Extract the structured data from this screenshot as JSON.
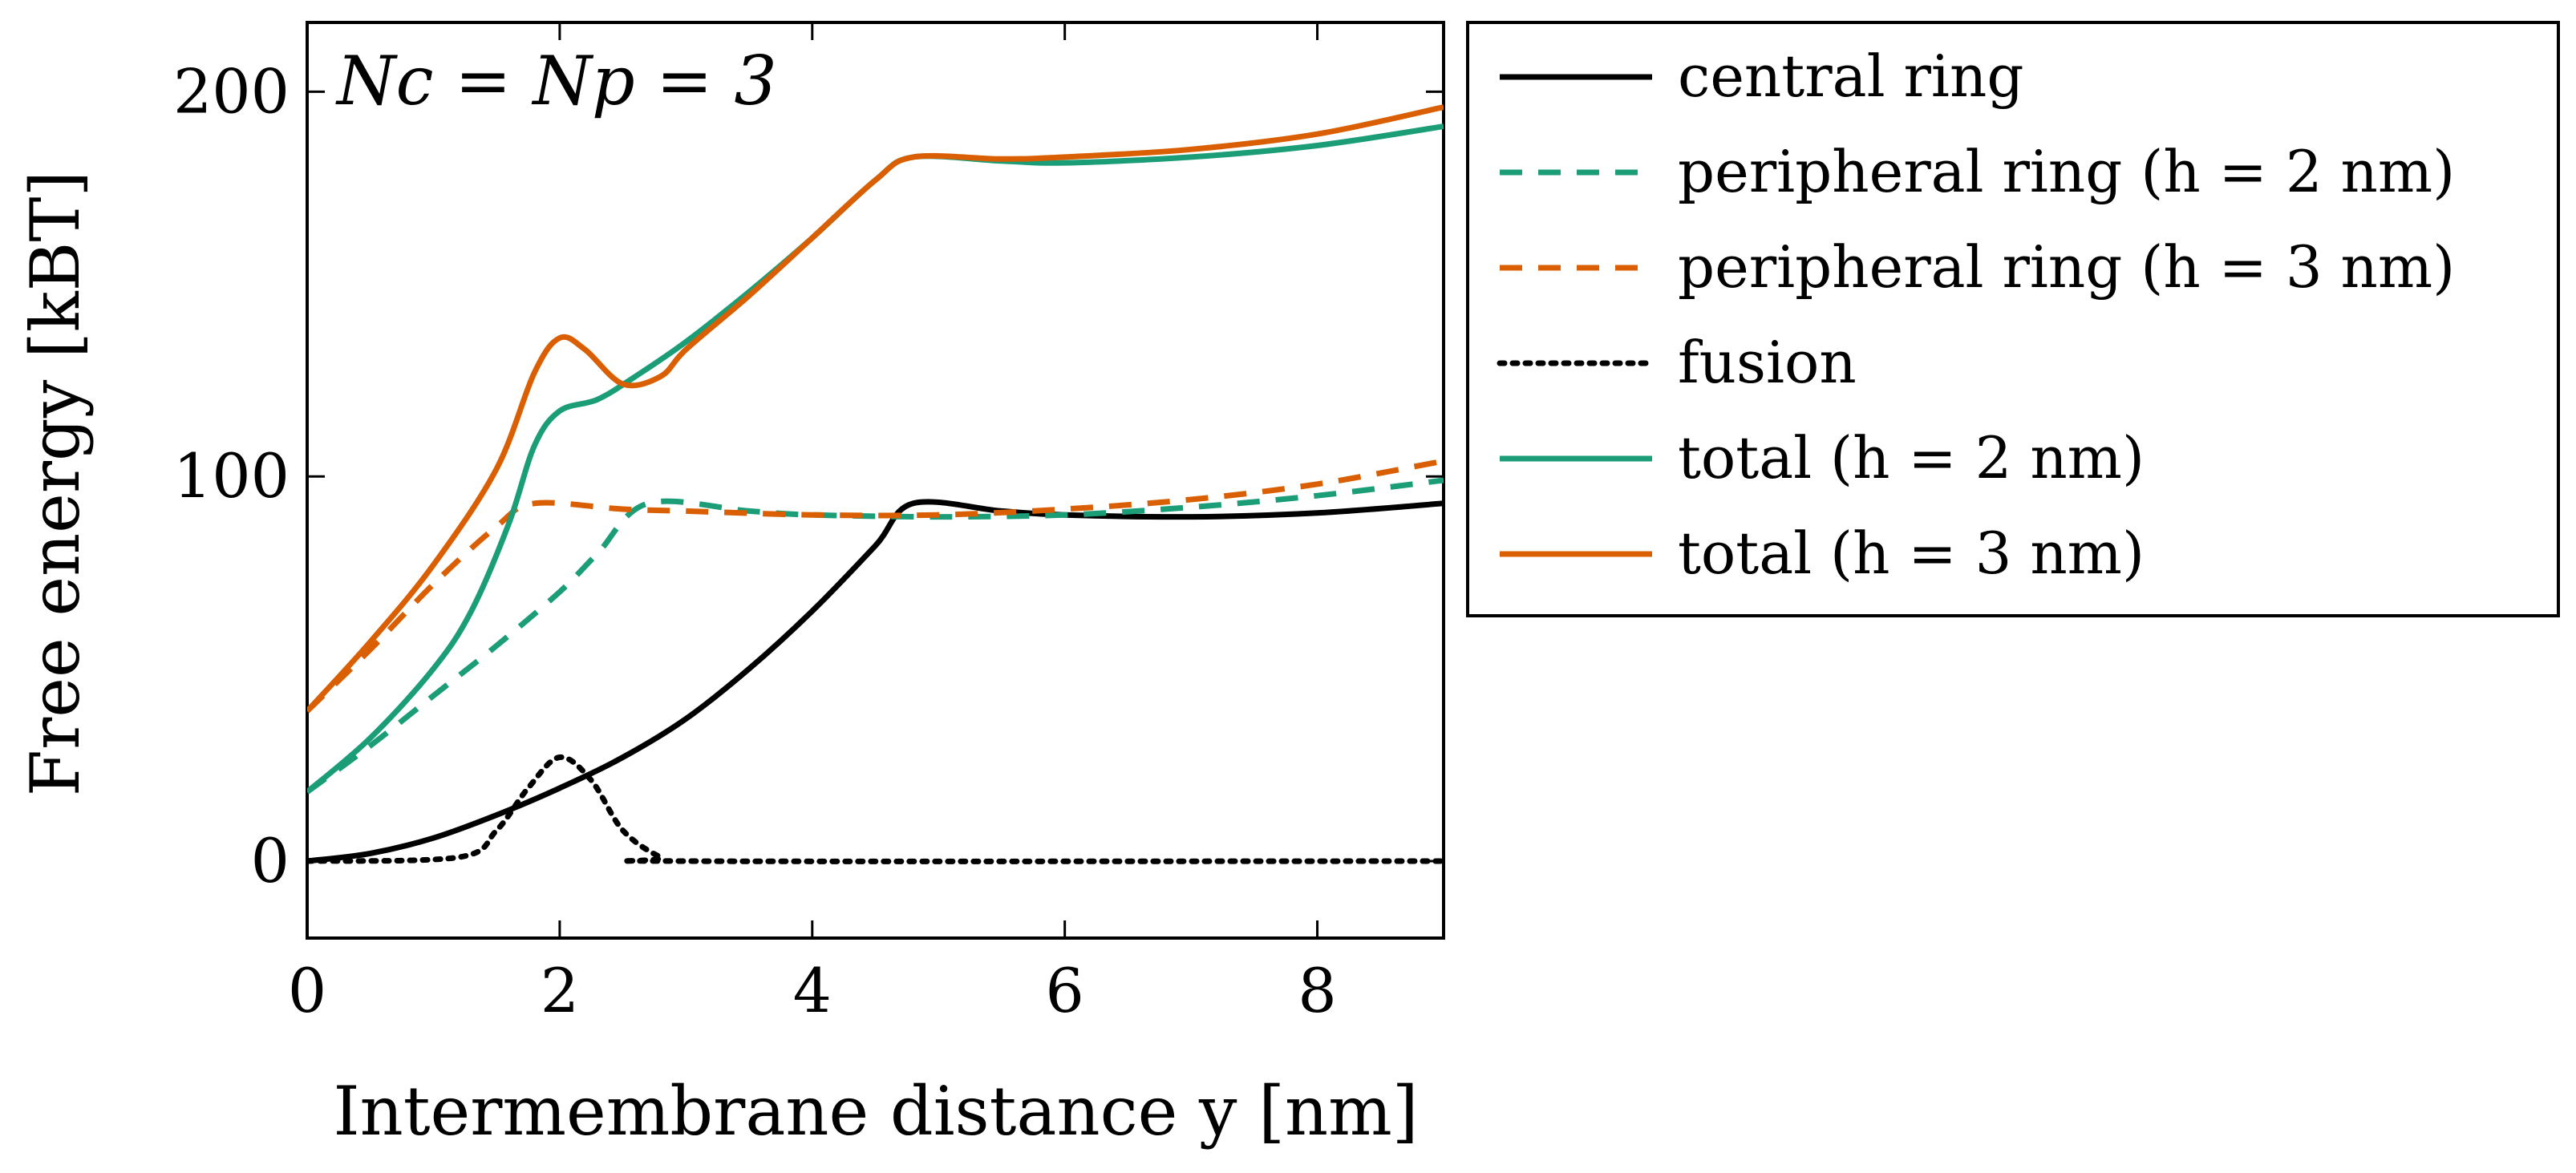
{
  "chart_data": {
    "type": "line",
    "title": "",
    "annotation": "N_c = N_p = 3",
    "annotation_display": "Nc = Np = 3",
    "xlabel": "Intermembrane distance y [nm]",
    "ylabel": "Free energy [kBT]",
    "xlim": [
      0,
      9
    ],
    "ylim": [
      -20,
      218
    ],
    "xticks": [
      0,
      2,
      4,
      6,
      8
    ],
    "yticks": [
      0,
      100,
      200
    ],
    "xtick_labels": [
      "0",
      "2",
      "4",
      "6",
      "8"
    ],
    "ytick_labels": [
      "0",
      "100",
      "200"
    ],
    "grid": false,
    "legend_position": "outside-right-top",
    "series": [
      {
        "name": "central ring",
        "color": "#000000",
        "style": "solid",
        "x": [
          0,
          0.5,
          1,
          1.5,
          2,
          2.5,
          3,
          3.5,
          4,
          4.5,
          4.8,
          5.5,
          6,
          7,
          8,
          9
        ],
        "y": [
          0,
          2,
          6,
          12,
          19,
          27,
          37,
          50,
          65,
          82,
          93,
          91,
          90,
          89.5,
          90.5,
          93
        ]
      },
      {
        "name": "peripheral ring (h = 2 nm)",
        "color": "#1b9e77",
        "style": "dashed",
        "x": [
          0,
          0.5,
          1,
          1.5,
          2,
          2.3,
          2.7,
          3.5,
          4,
          5,
          6,
          7,
          8,
          9
        ],
        "y": [
          18,
          30,
          43,
          56,
          70,
          80,
          93,
          91,
          90,
          89.5,
          90,
          92,
          95,
          99
        ]
      },
      {
        "name": "peripheral ring (h = 3 nm)",
        "color": "#d95f02",
        "style": "dashed",
        "x": [
          0,
          0.5,
          1,
          1.5,
          1.8,
          2.5,
          3,
          4,
          5,
          6,
          7,
          8,
          9
        ],
        "y": [
          39,
          55,
          72,
          87,
          93,
          91.5,
          91,
          90,
          90,
          91.5,
          94,
          98,
          104
        ]
      },
      {
        "name": "fusion",
        "color": "#000000",
        "style": "dotted",
        "x": [
          0,
          1.2,
          1.5,
          1.75,
          2,
          2.25,
          2.5,
          2.8,
          3,
          9
        ],
        "y": [
          0,
          1,
          8,
          19,
          27,
          21,
          8,
          1,
          0,
          0
        ]
      },
      {
        "name": "total (h = 2 nm)",
        "color": "#1b9e77",
        "style": "solid",
        "x": [
          0,
          0.5,
          1,
          1.3,
          1.6,
          1.8,
          2,
          2.3,
          2.6,
          3,
          3.5,
          4,
          4.5,
          4.8,
          5.5,
          6,
          7,
          8,
          9
        ],
        "y": [
          18,
          32,
          50,
          65,
          88,
          108,
          117,
          120,
          126,
          135,
          148,
          162,
          177,
          183,
          182,
          181.5,
          183,
          186,
          191
        ]
      },
      {
        "name": "total (h = 3 nm)",
        "color": "#d95f02",
        "style": "solid",
        "x": [
          0,
          0.5,
          1,
          1.5,
          1.8,
          2,
          2.2,
          2.5,
          2.8,
          3,
          3.5,
          4,
          4.5,
          4.8,
          5.5,
          6,
          7,
          8,
          9
        ],
        "y": [
          39,
          57,
          77,
          102,
          127,
          136,
          133,
          124,
          126,
          133,
          147,
          162,
          177,
          183,
          182.5,
          183,
          185,
          189,
          196
        ]
      }
    ]
  }
}
